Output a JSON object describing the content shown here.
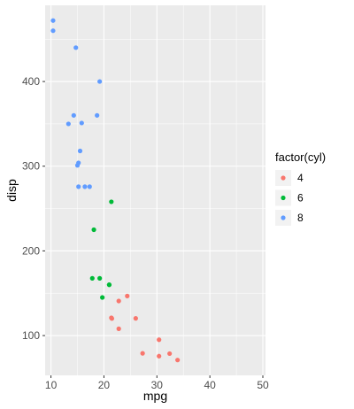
{
  "chart_data": {
    "type": "scatter",
    "xlabel": "mpg",
    "ylabel": "disp",
    "xlim": [
      8.9,
      50.5
    ],
    "ylim": [
      53,
      490
    ],
    "x_ticks": [
      10,
      20,
      30,
      40,
      50
    ],
    "y_ticks": [
      100,
      200,
      300,
      400
    ],
    "x_tick_labels": [
      "10",
      "20",
      "30",
      "40",
      "50"
    ],
    "y_tick_labels": [
      "100",
      "200",
      "300",
      "400"
    ],
    "grid": true,
    "background": "#ebebeb",
    "legend": {
      "title": "factor(cyl)",
      "position": "right",
      "entries": [
        "4",
        "6",
        "8"
      ]
    },
    "series": [
      {
        "name": "4",
        "color": "#f8766d",
        "points": [
          [
            22.8,
            108.0
          ],
          [
            24.4,
            146.7
          ],
          [
            22.8,
            140.8
          ],
          [
            32.4,
            78.7
          ],
          [
            30.4,
            75.7
          ],
          [
            33.9,
            71.1
          ],
          [
            21.5,
            120.1
          ],
          [
            27.3,
            79.0
          ],
          [
            26.0,
            120.3
          ],
          [
            30.4,
            95.1
          ],
          [
            21.4,
            121.0
          ]
        ]
      },
      {
        "name": "6",
        "color": "#00ba38",
        "points": [
          [
            21.0,
            160.0
          ],
          [
            21.0,
            160.0
          ],
          [
            21.4,
            258.0
          ],
          [
            18.1,
            225.0
          ],
          [
            19.2,
            167.6
          ],
          [
            17.8,
            167.6
          ],
          [
            19.7,
            145.0
          ]
        ]
      },
      {
        "name": "8",
        "color": "#619cff",
        "points": [
          [
            18.7,
            360.0
          ],
          [
            14.3,
            360.0
          ],
          [
            16.4,
            275.8
          ],
          [
            17.3,
            275.8
          ],
          [
            15.2,
            275.8
          ],
          [
            10.4,
            472.0
          ],
          [
            10.4,
            460.0
          ],
          [
            14.7,
            440.0
          ],
          [
            15.5,
            318.0
          ],
          [
            15.2,
            304.0
          ],
          [
            13.3,
            350.0
          ],
          [
            19.2,
            400.0
          ],
          [
            15.8,
            351.0
          ],
          [
            15.0,
            301.0
          ]
        ]
      }
    ]
  }
}
